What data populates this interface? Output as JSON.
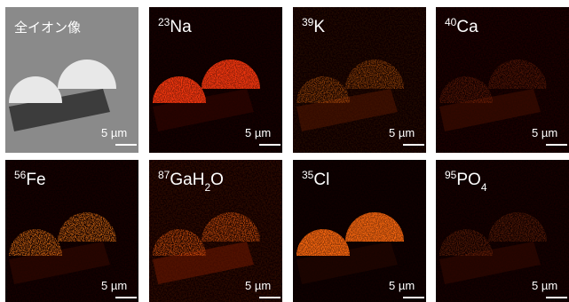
{
  "panels": [
    {
      "label": [
        {
          "text": "全イオン像"
        }
      ],
      "scale": "5 µm"
    },
    {
      "label": [
        {
          "text": "23",
          "style": "sup"
        },
        {
          "text": "Na"
        }
      ],
      "scale": "5 µm"
    },
    {
      "label": [
        {
          "text": "39",
          "style": "sup"
        },
        {
          "text": "K"
        }
      ],
      "scale": "5 µm"
    },
    {
      "label": [
        {
          "text": "40",
          "style": "sup"
        },
        {
          "text": "Ca"
        }
      ],
      "scale": "5 µm"
    },
    {
      "label": [
        {
          "text": "56",
          "style": "sup"
        },
        {
          "text": "Fe"
        }
      ],
      "scale": "5 µm"
    },
    {
      "label": [
        {
          "text": "87",
          "style": "sup"
        },
        {
          "text": "GaH"
        },
        {
          "text": "2",
          "style": "sub"
        },
        {
          "text": "O"
        }
      ],
      "scale": "5 µm"
    },
    {
      "label": [
        {
          "text": "35",
          "style": "sup"
        },
        {
          "text": "Cl"
        }
      ],
      "scale": "5 µm"
    },
    {
      "label": [
        {
          "text": "95",
          "style": "sup"
        },
        {
          "text": "PO"
        },
        {
          "text": "4",
          "style": "sub"
        }
      ],
      "scale": "5 µm"
    }
  ]
}
